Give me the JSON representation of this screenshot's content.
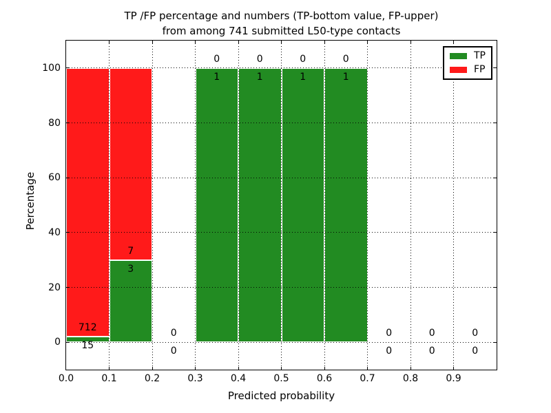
{
  "chart_data": {
    "type": "bar",
    "stacked": true,
    "title_line1": "TP /FP percentage and numbers (TP-bottom value, FP-upper)",
    "title_line2": "from among 741 submitted L50-type contacts",
    "xlabel": "Predicted probability",
    "ylabel": "Percentage",
    "xlim": [
      0.0,
      1.0
    ],
    "ylim": [
      -10,
      110
    ],
    "grid": "dotted",
    "total_contacts": 741,
    "x_ticks": [
      {
        "value": 0.0,
        "label": "0.0"
      },
      {
        "value": 0.1,
        "label": "0.1"
      },
      {
        "value": 0.2,
        "label": "0.2"
      },
      {
        "value": 0.3,
        "label": "0.3"
      },
      {
        "value": 0.4,
        "label": "0.4"
      },
      {
        "value": 0.5,
        "label": "0.5"
      },
      {
        "value": 0.6,
        "label": "0.6"
      },
      {
        "value": 0.7,
        "label": "0.7"
      },
      {
        "value": 0.8,
        "label": "0.8"
      },
      {
        "value": 0.9,
        "label": "0.9"
      }
    ],
    "y_ticks": [
      {
        "value": 0,
        "label": "0"
      },
      {
        "value": 20,
        "label": "20"
      },
      {
        "value": 40,
        "label": "40"
      },
      {
        "value": 60,
        "label": "60"
      },
      {
        "value": 80,
        "label": "80"
      },
      {
        "value": 100,
        "label": "100"
      }
    ],
    "series": [
      {
        "name": "TP",
        "color": "#228b22"
      },
      {
        "name": "FP",
        "color": "#ff1a1a"
      }
    ],
    "bins": [
      {
        "range": [
          0.0,
          0.1
        ],
        "tp": 15,
        "fp": 712
      },
      {
        "range": [
          0.1,
          0.2
        ],
        "tp": 3,
        "fp": 7
      },
      {
        "range": [
          0.2,
          0.3
        ],
        "tp": 0,
        "fp": 0
      },
      {
        "range": [
          0.3,
          0.4
        ],
        "tp": 1,
        "fp": 0
      },
      {
        "range": [
          0.4,
          0.5
        ],
        "tp": 1,
        "fp": 0
      },
      {
        "range": [
          0.5,
          0.6
        ],
        "tp": 1,
        "fp": 0
      },
      {
        "range": [
          0.6,
          0.7
        ],
        "tp": 1,
        "fp": 0
      },
      {
        "range": [
          0.7,
          0.8
        ],
        "tp": 0,
        "fp": 0
      },
      {
        "range": [
          0.8,
          0.9
        ],
        "tp": 0,
        "fp": 0
      },
      {
        "range": [
          0.9,
          1.0
        ],
        "tp": 0,
        "fp": 0
      }
    ],
    "legend": {
      "position": "upper right",
      "entries": [
        {
          "label": "TP",
          "color": "#228b22"
        },
        {
          "label": "FP",
          "color": "#ff1a1a"
        }
      ]
    }
  }
}
